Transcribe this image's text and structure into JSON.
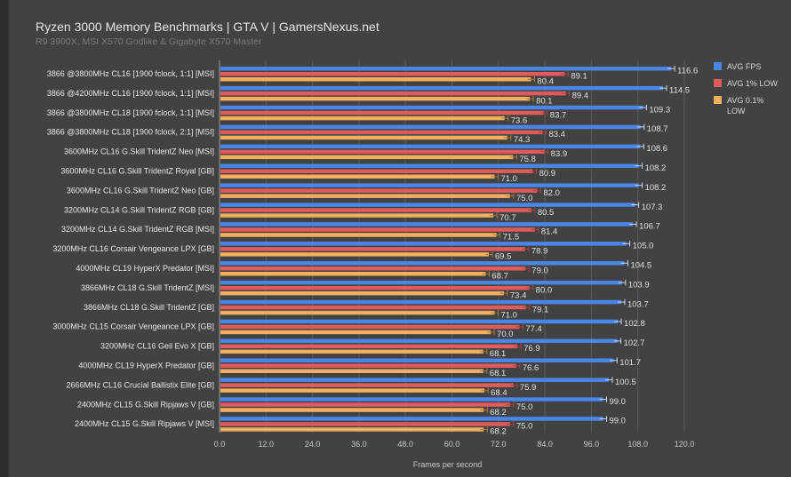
{
  "chart_data": {
    "type": "bar",
    "orientation": "horizontal",
    "title": "Ryzen 3000 Memory Benchmarks | GTA V | GamersNexus.net",
    "subtitle": "R9 3900X, MSI X570 Godlike & Gigabyte X570 Master",
    "xlabel": "Frames per second",
    "xlim": [
      0,
      120
    ],
    "xticks": [
      "0.0",
      "12.0",
      "24.0",
      "36.0",
      "48.0",
      "60.0",
      "72.0",
      "84.0",
      "96.0",
      "108.0",
      "120.0"
    ],
    "grid": true,
    "legend_position": "top-right",
    "categories": [
      "3866 @3800MHz CL16 [1900 fclock, 1:1] [MSI]",
      "3866 @4200MHz CL16 [1900 fclock, 1:1] [MSI]",
      "3866 @3800MHz CL18 [1900 fclock, 1:1] [MSI]",
      "3866 @3800MHz CL18 [1900 fclock, 2:1] [MSI]",
      "3600MHz CL16 G.Skill TridentZ Neo [MSI]",
      "3600MHz CL16 G.Skill TridentZ Royal [GB]",
      "3600MHz CL16 G.Skill TridentZ Neo [GB]",
      "3200MHz CL14 G.Skill TridentZ RGB [GB]",
      "3200MHz CL14 G.Skill TridentZ RGB [MSI]",
      "3200MHz CL16 Corsair Vengeance LPX [GB]",
      "4000MHz CL19 HyperX Predator [MSI]",
      "3866MHz CL18 G.Skill TridentZ [MSI]",
      "3866MHz CL18 G.Skill TridentZ [GB]",
      "3000MHz CL15 Corsair Vengeance LPX [GB]",
      "3200MHz CL16 Geil Evo X [GB]",
      "4000MHz CL19 HyperX Predator [GB]",
      "2666MHz CL16 Crucial Ballistix Elite [GB]",
      "2400MHz CL15 G.Skill Ripjaws V [GB]",
      "2400MHz CL15 G.Skill Ripjaws V [MSI]"
    ],
    "series": [
      {
        "name": "AVG FPS",
        "color": "#4a86e8",
        "values": [
          116.6,
          114.5,
          109.3,
          108.7,
          108.6,
          108.2,
          108.2,
          107.3,
          106.7,
          105.0,
          104.5,
          103.9,
          103.7,
          102.8,
          102.7,
          101.7,
          100.5,
          99.0,
          99.0
        ]
      },
      {
        "name": "AVG 1% LOW",
        "color": "#e05c5c",
        "values": [
          89.1,
          89.4,
          83.7,
          83.4,
          83.9,
          80.9,
          82.0,
          80.5,
          81.4,
          78.9,
          79.0,
          80.0,
          79.1,
          77.4,
          76.9,
          76.6,
          75.9,
          75.0,
          75.0
        ]
      },
      {
        "name": "AVG 0.1% LOW",
        "color": "#f2b05e",
        "values": [
          80.4,
          80.1,
          73.6,
          74.3,
          75.8,
          71.0,
          75.0,
          70.7,
          71.5,
          69.5,
          68.7,
          73.4,
          71.0,
          70.0,
          68.1,
          68.1,
          68.4,
          68.2,
          68.2
        ]
      }
    ]
  }
}
